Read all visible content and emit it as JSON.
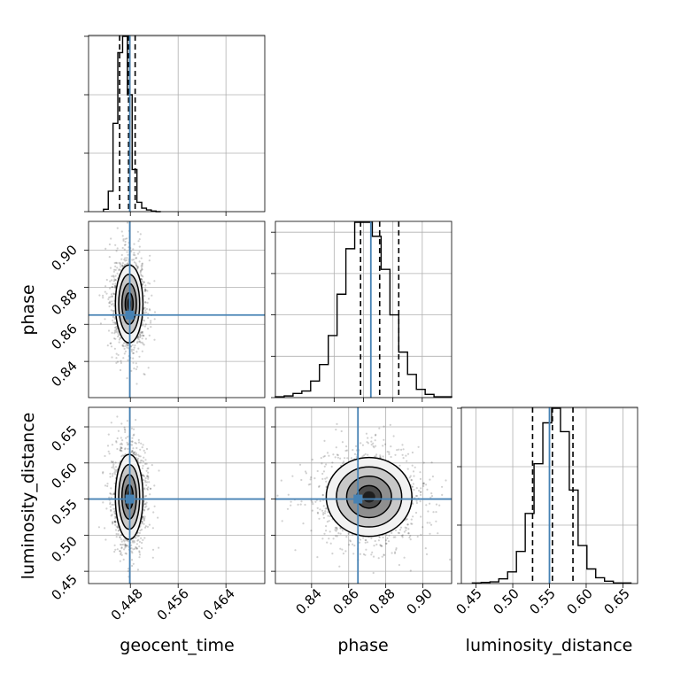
{
  "chart_data": {
    "type": "corner",
    "parameters": [
      "geocent_time",
      "phase",
      "luminosity_distance"
    ],
    "truths": {
      "geocent_time": 0.4479,
      "phase": 0.865,
      "luminosity_distance": 0.55
    },
    "truth_color": "#4682b4",
    "grid": true,
    "panels": {
      "geocent_time_hist": {
        "type": "histogram",
        "xlim": [
          0.441,
          0.4705
        ],
        "bin_edges": [
          0.4435,
          0.4443,
          0.4451,
          0.4459,
          0.4467,
          0.4475,
          0.4483,
          0.4491,
          0.4499,
          0.4507,
          0.4515,
          0.4523,
          0.4531
        ],
        "counts": [
          4,
          35,
          151,
          272,
          300,
          200,
          72,
          16,
          6,
          3,
          1,
          0
        ],
        "quantiles": [
          0.4462,
          0.4477,
          0.4488
        ],
        "yticks_unlabeled": [
          0,
          100,
          200,
          300
        ]
      },
      "phase_hist": {
        "type": "histogram",
        "xlim": [
          0.8,
          0.92
        ],
        "bin_edges": [
          0.8,
          0.806,
          0.812,
          0.818,
          0.824,
          0.83,
          0.836,
          0.842,
          0.848,
          0.854,
          0.86,
          0.866,
          0.872,
          0.878,
          0.884,
          0.89,
          0.896,
          0.902,
          0.908,
          0.914,
          0.92
        ],
        "counts": [
          1,
          2,
          5,
          8,
          20,
          40,
          75,
          125,
          180,
          212,
          212,
          195,
          155,
          100,
          55,
          28,
          10,
          4,
          1,
          1
        ],
        "quantiles": [
          0.858,
          0.871,
          0.884
        ],
        "yticks_unlabeled": [
          0,
          50,
          100,
          150,
          200
        ]
      },
      "luminosity_distance_hist": {
        "type": "histogram",
        "xlim": [
          0.43,
          0.67
        ],
        "bin_edges": [
          0.445,
          0.457,
          0.469,
          0.481,
          0.493,
          0.505,
          0.517,
          0.529,
          0.541,
          0.553,
          0.565,
          0.577,
          0.589,
          0.601,
          0.613,
          0.625,
          0.637,
          0.649,
          0.661
        ],
        "counts": [
          1,
          2,
          3,
          8,
          20,
          55,
          120,
          205,
          275,
          300,
          260,
          160,
          65,
          25,
          10,
          4,
          1,
          1
        ],
        "quantiles": [
          0.527,
          0.554,
          0.582
        ],
        "yticks_unlabeled": [
          0,
          100,
          200,
          300
        ]
      },
      "phase_vs_geocent_time": {
        "type": "density_contour",
        "x": "geocent_time",
        "y": "phase",
        "xlim": [
          0.441,
          0.4705
        ],
        "ylim": [
          0.8205,
          0.9155
        ],
        "center": [
          0.4478,
          0.871
        ],
        "spread": [
          0.0011,
          0.01
        ]
      },
      "luminosity_distance_vs_geocent_time": {
        "type": "density_contour",
        "x": "geocent_time",
        "y": "luminosity_distance",
        "xlim": [
          0.441,
          0.4705
        ],
        "ylim": [
          0.433,
          0.677
        ],
        "center": [
          0.4478,
          0.553
        ],
        "spread": [
          0.0011,
          0.028
        ]
      },
      "luminosity_distance_vs_phase": {
        "type": "density_contour",
        "x": "phase",
        "y": "luminosity_distance",
        "xlim": [
          0.8205,
          0.9155
        ],
        "ylim": [
          0.433,
          0.677
        ],
        "center": [
          0.871,
          0.553
        ],
        "spread": [
          0.011,
          0.026
        ]
      }
    },
    "ticks": {
      "geocent_time": [
        "0.448",
        "0.456",
        "0.464"
      ],
      "phase": [
        "0.84",
        "0.86",
        "0.88",
        "0.90"
      ],
      "luminosity_distance": [
        "0.45",
        "0.50",
        "0.55",
        "0.60",
        "0.65"
      ]
    },
    "xlabels": [
      "geocent_time",
      "phase",
      "luminosity_distance"
    ],
    "ylabels": [
      "phase",
      "luminosity_distance"
    ]
  }
}
